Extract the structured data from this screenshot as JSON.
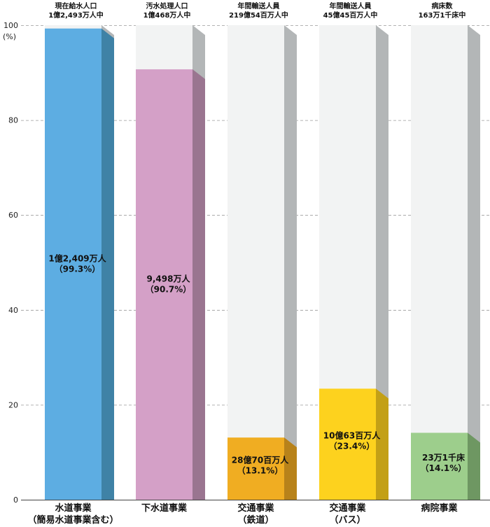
{
  "chart_data": {
    "type": "bar",
    "ylim": [
      0,
      100
    ],
    "y_unit_label": "(%)",
    "yticks": [
      0,
      20,
      40,
      60,
      80,
      100
    ],
    "grid": true,
    "categories": [
      {
        "name_line1": "水道事業",
        "name_line2": "（簡易水道事業含む）",
        "header_line1": "現在給水人口",
        "header_line2": "1億2,493万人中",
        "value": 99.3,
        "label_line1": "1億2,409万人",
        "label_line2": "（99.3%）",
        "color": "#5dade2",
        "shade": "#3f82a6"
      },
      {
        "name_line1": "下水道事業",
        "name_line2": "",
        "header_line1": "汚水処理人口",
        "header_line2": "1億468万人中",
        "value": 90.7,
        "label_line1": "9,498万人",
        "label_line2": "（90.7%）",
        "color": "#d4a0c7",
        "shade": "#9a7590"
      },
      {
        "name_line1": "交通事業",
        "name_line2": "（鉄道）",
        "header_line1": "年間輸送人員",
        "header_line2": "219億54百万人中",
        "value": 13.1,
        "label_line1": "28億70百万人",
        "label_line2": "（13.1%）",
        "color": "#f0ad22",
        "shade": "#b8821a"
      },
      {
        "name_line1": "交通事業",
        "name_line2": "（バス）",
        "header_line1": "年間輸送人員",
        "header_line2": "45億45百万人中",
        "value": 23.4,
        "label_line1": "10億63百万人",
        "label_line2": "（23.4%）",
        "color": "#fdd21e",
        "shade": "#c3a016"
      },
      {
        "name_line1": "病院事業",
        "name_line2": "",
        "header_line1": "病床数",
        "header_line2": "163万1千床中",
        "value": 14.1,
        "label_line1": "23万1千床",
        "label_line2": "（14.1%）",
        "color": "#9dce8c",
        "shade": "#6e9762"
      }
    ],
    "colors": {
      "background_bar": "#f2f3f3",
      "background_shade": "#b3b6b7",
      "gridline": "#999999"
    }
  }
}
